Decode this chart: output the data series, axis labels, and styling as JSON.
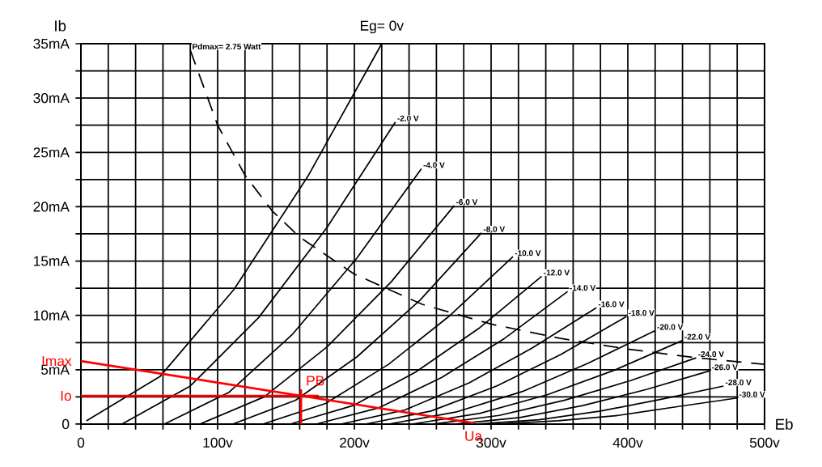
{
  "chart_data": {
    "type": "line",
    "xlabel": "Eb",
    "ylabel": "Ib",
    "xlim": [
      0,
      500
    ],
    "ylim": [
      0,
      35
    ],
    "xticks": [
      0,
      {
        "value": 20,
        "label": null
      },
      {
        "value": 40,
        "label": null
      },
      {
        "value": 60,
        "label": null
      },
      {
        "value": 80,
        "label": null
      },
      {
        "value": 100,
        "label": "100v"
      },
      {
        "value": 120,
        "label": null
      },
      {
        "value": 140,
        "label": null
      },
      {
        "value": 160,
        "label": null
      },
      {
        "value": 180,
        "label": null
      },
      {
        "value": 200,
        "label": "200v"
      },
      {
        "value": 220,
        "label": null
      },
      {
        "value": 240,
        "label": null
      },
      {
        "value": 260,
        "label": null
      },
      {
        "value": 280,
        "label": null
      },
      {
        "value": 300,
        "label": "300v"
      },
      {
        "value": 320,
        "label": null
      },
      {
        "value": 340,
        "label": null
      },
      {
        "value": 360,
        "label": null
      },
      {
        "value": 380,
        "label": null
      },
      {
        "value": 400,
        "label": "400v"
      },
      {
        "value": 420,
        "label": null
      },
      {
        "value": 440,
        "label": null
      },
      {
        "value": 460,
        "label": null
      },
      {
        "value": 480,
        "label": null
      },
      {
        "value": 500,
        "label": "500v"
      }
    ],
    "yticks": [
      0,
      {
        "value": 2.5,
        "label": null
      },
      {
        "value": 5,
        "label": "5mA"
      },
      {
        "value": 7.5,
        "label": null
      },
      {
        "value": 10,
        "label": "10mA"
      },
      {
        "value": 12.5,
        "label": null
      },
      {
        "value": 15,
        "label": "15mA"
      },
      {
        "value": 17.5,
        "label": null
      },
      {
        "value": 20,
        "label": "20mA"
      },
      {
        "value": 22.5,
        "label": null
      },
      {
        "value": 25,
        "label": "25mA"
      },
      {
        "value": 27.5,
        "label": null
      },
      {
        "value": 30,
        "label": "30mA"
      },
      {
        "value": 32.5,
        "label": null
      },
      {
        "value": 35,
        "label": "35mA"
      }
    ],
    "grid": true,
    "series": [
      {
        "name": "Eg= 0v",
        "color": "#000000",
        "x": [
          4,
          58,
          112,
          166,
          220
        ],
        "values": [
          0.3,
          4.4,
          12.4,
          22.8,
          35
        ]
      },
      {
        "name": "-2.0 V",
        "color": "#000000",
        "x": [
          30,
          80,
          130,
          180,
          230
        ],
        "values": [
          0,
          3.5,
          9.8,
          18.1,
          27.8
        ]
      },
      {
        "name": "-4.0 V",
        "color": "#000000",
        "x": [
          61,
          108,
          155,
          202,
          249
        ],
        "values": [
          0,
          2.9,
          8.3,
          15.3,
          23.5
        ]
      },
      {
        "name": "-6.0 V",
        "color": "#000000",
        "x": [
          87,
          134,
          180,
          227,
          273
        ],
        "values": [
          0,
          2.5,
          7.1,
          13.1,
          20.1
        ]
      },
      {
        "name": "-8.0 V",
        "color": "#000000",
        "x": [
          111,
          157,
          202,
          248,
          293
        ],
        "values": [
          0,
          2.2,
          6.2,
          11.4,
          17.6
        ]
      },
      {
        "name": "-10.0 V",
        "color": "#000000",
        "x": [
          133,
          179,
          225,
          270,
          316
        ],
        "values": [
          0,
          1.9,
          5.5,
          10,
          15.4
        ]
      },
      {
        "name": "-12.0 V",
        "color": "#000000",
        "x": [
          153,
          199,
          245,
          291,
          337
        ],
        "values": [
          0,
          1.7,
          4.8,
          8.8,
          13.6
        ]
      },
      {
        "name": "-14.0 V",
        "color": "#000000",
        "x": [
          172,
          218,
          264,
          310,
          356
        ],
        "values": [
          0,
          1.5,
          4.3,
          7.9,
          12.2
        ]
      },
      {
        "name": "-16.0 V",
        "color": "#000000",
        "x": [
          190,
          237,
          284,
          330,
          377
        ],
        "values": [
          0,
          1.3,
          3.8,
          7.0,
          10.7
        ]
      },
      {
        "name": "-18.0 V",
        "color": "#000000",
        "x": [
          208,
          256,
          304,
          351,
          399
        ],
        "values": [
          0,
          1.2,
          3.5,
          6.4,
          9.9
        ]
      },
      {
        "name": "-20.0 V",
        "color": "#000000",
        "x": [
          225,
          274,
          323,
          371,
          420
        ],
        "values": [
          0,
          1.1,
          3.0,
          5.6,
          8.6
        ]
      },
      {
        "name": "-22.0 V",
        "color": "#000000",
        "x": [
          242,
          292,
          341,
          391,
          440
        ],
        "values": [
          0,
          1.0,
          2.7,
          5.0,
          7.7
        ]
      },
      {
        "name": "-24.0 V",
        "color": "#000000",
        "x": [
          258,
          306,
          354,
          402,
          450
        ],
        "values": [
          0,
          0.8,
          2.2,
          4.0,
          6.1
        ]
      },
      {
        "name": "-26.0 V",
        "color": "#000000",
        "x": [
          274,
          321,
          367,
          414,
          460
        ],
        "values": [
          0,
          0.6,
          1.7,
          3.2,
          4.9
        ]
      },
      {
        "name": "-28.0 V",
        "color": "#000000",
        "x": [
          290,
          335,
          380,
          425,
          470
        ],
        "values": [
          0,
          0.4,
          1.2,
          2.3,
          3.5
        ]
      },
      {
        "name": "-30.0 V",
        "color": "#000000",
        "x": [
          305,
          349,
          393,
          436,
          480
        ],
        "values": [
          0,
          0.3,
          0.8,
          1.6,
          2.4
        ]
      },
      {
        "name": "Pdmax= 2.75 Watt",
        "color": "#000000",
        "line_style": "dashed",
        "x": [
          80,
          100,
          120,
          140,
          160,
          200,
          250,
          300,
          350,
          400,
          450,
          500
        ],
        "values": [
          34.4,
          27.5,
          22.9,
          19.6,
          17.2,
          13.8,
          11,
          9.2,
          7.9,
          6.9,
          6.1,
          5.5
        ]
      },
      {
        "color": "#ff0000",
        "x": [
          0,
          287
        ],
        "values": [
          5.8,
          0.1
        ]
      },
      {
        "color": "#ff0000",
        "x": [
          0,
          174
        ],
        "values": [
          2.6,
          2.6
        ]
      },
      {
        "color": "#ff0000",
        "x": [
          161,
          161
        ],
        "values": [
          0,
          3.2
        ]
      }
    ],
    "annotations": [
      {
        "text": "Imax",
        "x": 0,
        "y": 5.8
      },
      {
        "text": "Io",
        "x": 0,
        "y": 2.6
      },
      {
        "text": "PB",
        "x": 161,
        "y": 3.2
      },
      {
        "text": "Ua",
        "x": 287,
        "y": 0
      }
    ]
  }
}
